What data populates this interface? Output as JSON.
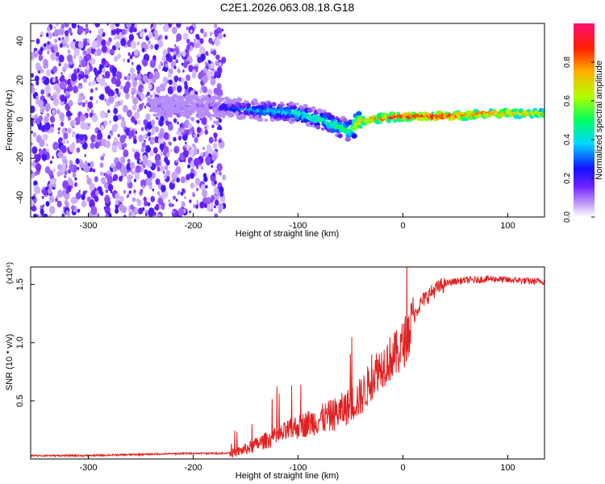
{
  "figure_title": "C2E1.2026.063.08.18.G18",
  "colorbar": {
    "label": "Normalized spectral amplitude",
    "ticks": [
      "0.0",
      "0.2",
      "0.4",
      "0.6",
      "0.8"
    ],
    "tick_values": [
      0.0,
      0.2,
      0.4,
      0.6,
      0.8
    ],
    "range": [
      0,
      1
    ],
    "colormap": [
      "#ffffff",
      "#c8a8f8",
      "#7020ff",
      "#1010ff",
      "#00d8ff",
      "#00ff60",
      "#b0ff00",
      "#ffb000",
      "#ff2000",
      "#ff1070"
    ]
  },
  "chart_data": [
    {
      "type": "heatmap",
      "title": "C2E1.2026.063.08.18.G18",
      "xlabel": "Height of straight line (km)",
      "ylabel": "Frequency (Hz)",
      "xlim": [
        -355,
        135
      ],
      "ylim": [
        -50,
        49
      ],
      "xticks": [
        -300,
        -200,
        -100,
        0,
        100
      ],
      "yticks": [
        -40,
        -20,
        0,
        20,
        40
      ],
      "xtick_labels": [
        "-300",
        "-200",
        "-100",
        "0",
        "100"
      ],
      "ytick_labels": [
        "-40",
        "-20",
        "0",
        "20",
        "40"
      ],
      "ridge": {
        "x": [
          -240,
          -200,
          -170,
          -150,
          -120,
          -100,
          -80,
          -60,
          -50,
          -45,
          -40,
          -30,
          -20,
          -10,
          0,
          20,
          40,
          60,
          80,
          100,
          120,
          135
        ],
        "frequency": [
          7,
          7,
          6,
          5,
          4,
          3,
          0,
          -4,
          -6,
          -3,
          -1,
          0,
          0.5,
          1,
          1.5,
          1.5,
          1.5,
          2,
          3,
          3,
          3,
          3
        ],
        "amplitude": [
          0.15,
          0.15,
          0.3,
          0.4,
          0.45,
          0.5,
          0.5,
          0.55,
          0.6,
          0.7,
          0.8,
          0.85,
          0.9,
          0.95,
          0.95,
          0.95,
          0.95,
          0.9,
          0.85,
          0.85,
          0.8,
          0.75
        ]
      },
      "background_noise_extent_x": [
        -355,
        -170
      ]
    },
    {
      "type": "line",
      "xlabel": "Height of straight line (km)",
      "ylabel": "SNR (10 * v/v)",
      "y_multiplier": "(x10⁴)",
      "xlim": [
        -355,
        135
      ],
      "ylim": [
        0,
        16500
      ],
      "xticks": [
        -300,
        -200,
        -100,
        0,
        100
      ],
      "yticks": [
        5000,
        10000,
        15000
      ],
      "xtick_labels": [
        "-300",
        "-200",
        "-100",
        "0",
        "100"
      ],
      "ytick_labels": [
        "0.5",
        "1.0",
        "1.5"
      ],
      "series": [
        {
          "color": "#e02020",
          "x": [
            -355,
            -300,
            -250,
            -200,
            -170,
            -160,
            -150,
            -140,
            -130,
            -120,
            -110,
            -100,
            -90,
            -80,
            -70,
            -60,
            -50,
            -45,
            -40,
            -35,
            -30,
            -25,
            -20,
            -15,
            -10,
            -5,
            0,
            5,
            10,
            15,
            20,
            30,
            40,
            50,
            60,
            70,
            80,
            90,
            100,
            110,
            120,
            135
          ],
          "values": [
            300,
            300,
            400,
            500,
            500,
            600,
            900,
            1300,
            1700,
            2000,
            2500,
            2900,
            3200,
            3500,
            3800,
            4200,
            4800,
            5200,
            5500,
            6200,
            7000,
            7800,
            8200,
            8600,
            9000,
            9300,
            10000,
            11000,
            12300,
            13200,
            13800,
            14600,
            15100,
            15300,
            15400,
            15400,
            15500,
            15500,
            15400,
            15400,
            15300,
            15300
          ]
        }
      ]
    }
  ]
}
